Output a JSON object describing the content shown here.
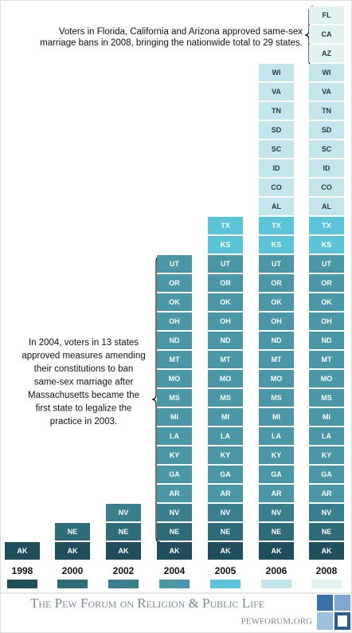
{
  "chart_data": {
    "type": "tile-stack",
    "groups": [
      {
        "year": "1998",
        "color": "#1f4f5b",
        "states": [
          "AK"
        ]
      },
      {
        "year": "2000",
        "color": "#2e6c79",
        "states": [
          "NE"
        ]
      },
      {
        "year": "2002",
        "color": "#3a7f8d",
        "states": [
          "NV"
        ]
      },
      {
        "year": "2004",
        "color": "#4a97a8",
        "states": [
          "AR",
          "GA",
          "KY",
          "LA",
          "MI",
          "MS",
          "MO",
          "MT",
          "ND",
          "OH",
          "OK",
          "OR",
          "UT"
        ]
      },
      {
        "year": "2005",
        "color": "#5cc4d9",
        "states": [
          "KS",
          "TX"
        ]
      },
      {
        "year": "2006",
        "color": "#c3e6ec",
        "states": [
          "AL",
          "CO",
          "ID",
          "SC",
          "SD",
          "TN",
          "VA",
          "WI"
        ]
      },
      {
        "year": "2008",
        "color": "#e1f2f1",
        "states": [
          "AZ",
          "CA",
          "FL"
        ]
      }
    ],
    "annotations": [
      {
        "lines": [
          "Voters in Florida, California and Arizona approved same-sex",
          "marriage bans in 2008, bringing the nationwide total to 29 states."
        ]
      },
      {
        "lines": [
          "In 2004, voters in 13 states",
          "approved measures amending",
          "their constitutions to ban",
          "same-sex marriage after",
          "Massachusetts became the",
          "first state to legalize the",
          "practice in 2003."
        ]
      }
    ]
  },
  "footer": {
    "title": "The Pew Forum on Religion & Public Life",
    "url": "pewforum.org"
  }
}
